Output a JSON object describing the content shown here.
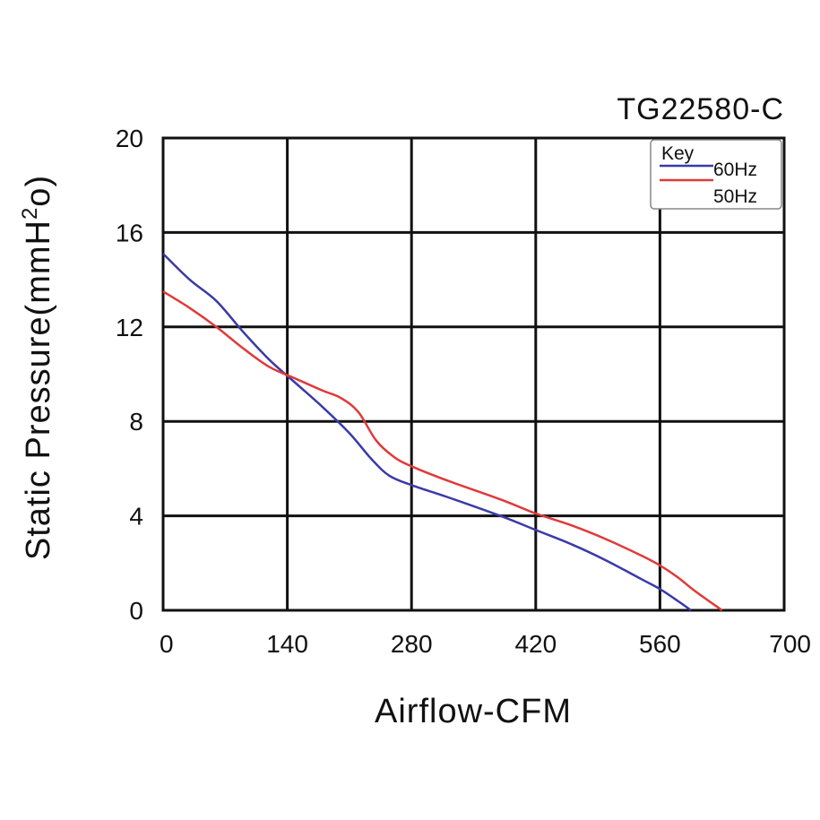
{
  "chart_data": {
    "type": "line",
    "title": "TG22580-C",
    "xlabel": "Airflow-CFM",
    "ylabel_main": "Static Pressure(mmH",
    "ylabel_sup1": "2",
    "ylabel_tail": "o)",
    "xlim": [
      0,
      700
    ],
    "ylim": [
      0,
      20
    ],
    "xticks": [
      0,
      140,
      280,
      420,
      560,
      700
    ],
    "yticks": [
      0,
      4,
      8,
      12,
      16,
      20
    ],
    "xtick_labels": [
      "0",
      "140",
      "280",
      "420",
      "560",
      "700"
    ],
    "ytick_labels": [
      "0",
      "4",
      "8",
      "12",
      "16",
      "20"
    ],
    "grid": true,
    "legend": {
      "title": "Key",
      "placement": "top-right",
      "entries": [
        "60Hz",
        "50Hz"
      ]
    },
    "series": [
      {
        "name": "60Hz",
        "color": "#3a3aa8",
        "x": [
          0,
          30,
          60,
          90,
          120,
          150,
          180,
          210,
          235,
          255,
          280,
          320,
          380,
          420,
          460,
          500,
          540,
          560,
          580,
          595
        ],
        "y": [
          15.1,
          14.0,
          13.1,
          11.8,
          10.6,
          9.6,
          8.6,
          7.5,
          6.4,
          5.7,
          5.3,
          4.8,
          4.0,
          3.4,
          2.8,
          2.1,
          1.3,
          0.9,
          0.4,
          0.0
        ]
      },
      {
        "name": "50Hz",
        "color": "#e03a3a",
        "x": [
          0,
          30,
          60,
          90,
          120,
          150,
          180,
          200,
          220,
          240,
          260,
          280,
          320,
          380,
          420,
          460,
          500,
          540,
          560,
          580,
          600,
          630
        ],
        "y": [
          13.5,
          12.8,
          12.0,
          11.1,
          10.3,
          9.8,
          9.3,
          9.0,
          8.4,
          7.2,
          6.5,
          6.1,
          5.5,
          4.7,
          4.1,
          3.6,
          3.0,
          2.3,
          1.9,
          1.4,
          0.8,
          0.0
        ]
      }
    ]
  }
}
